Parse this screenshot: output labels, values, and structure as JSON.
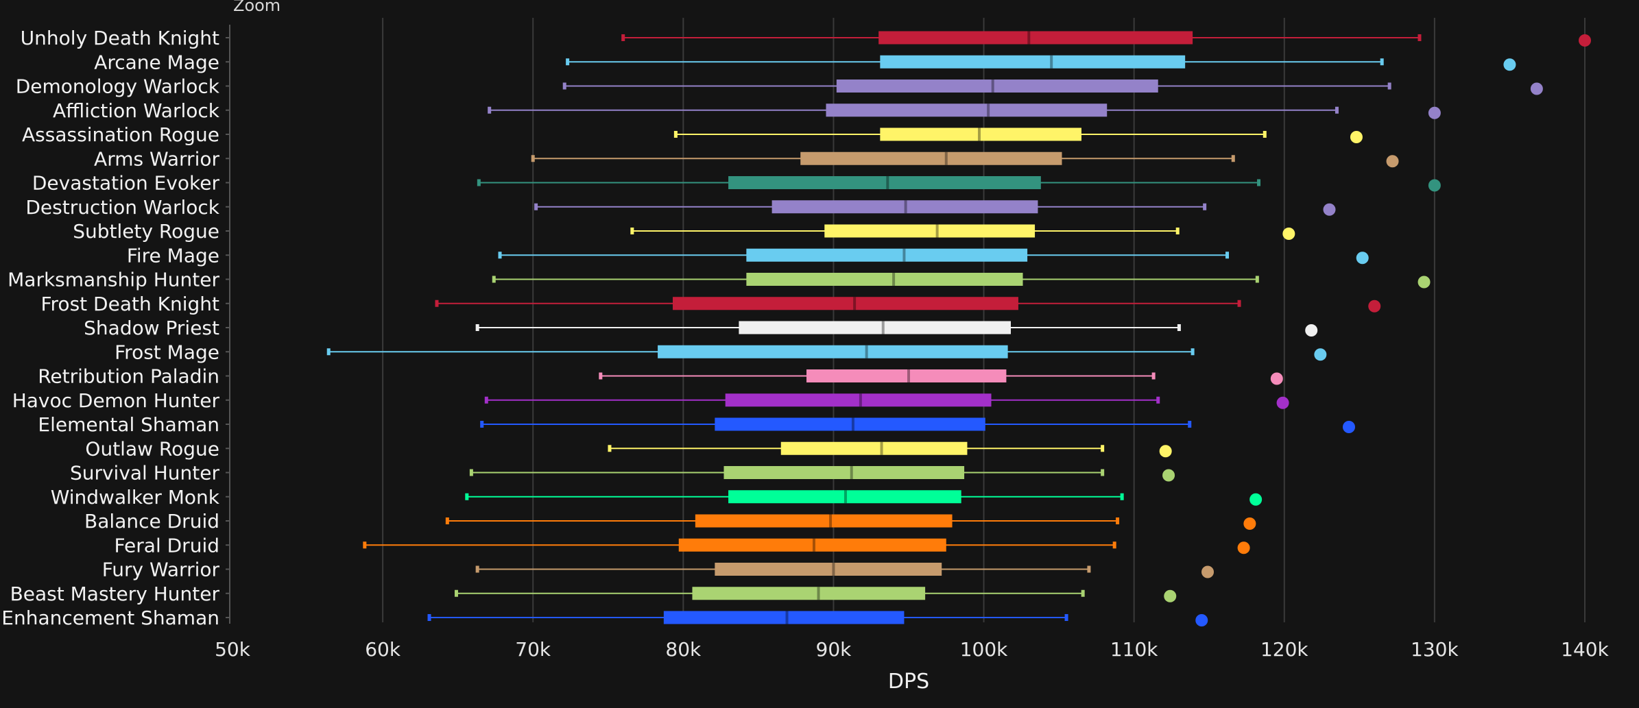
{
  "zoom_label": "Zoom",
  "chart_data": {
    "type": "boxplot",
    "title": "",
    "xlabel": "DPS",
    "ylabel": "",
    "xlim": [
      50000,
      140000
    ],
    "x_ticks": [
      50000,
      60000,
      70000,
      80000,
      90000,
      100000,
      110000,
      120000,
      130000,
      140000
    ],
    "x_tick_labels": [
      "50k",
      "60k",
      "70k",
      "80k",
      "90k",
      "100k",
      "110k",
      "120k",
      "130k",
      "140k"
    ],
    "grid": "vertical",
    "legend": "none",
    "series": [
      {
        "name": "Unholy Death Knight",
        "color": "#c41e3a",
        "min": 76000,
        "q1": 93000,
        "median": 103000,
        "q3": 113900,
        "max": 129000,
        "outlier": 140000
      },
      {
        "name": "Arcane Mage",
        "color": "#69ccf0",
        "min": 72300,
        "q1": 93100,
        "median": 104500,
        "q3": 113400,
        "max": 126500,
        "outlier": 135000
      },
      {
        "name": "Demonology Warlock",
        "color": "#9482c9",
        "min": 72100,
        "q1": 90200,
        "median": 100600,
        "q3": 111600,
        "max": 127000,
        "outlier": 136800
      },
      {
        "name": "Affliction Warlock",
        "color": "#9482c9",
        "min": 67100,
        "q1": 89500,
        "median": 100300,
        "q3": 108200,
        "max": 123500,
        "outlier": 130000
      },
      {
        "name": "Assassination Rogue",
        "color": "#fff468",
        "min": 79500,
        "q1": 93100,
        "median": 99700,
        "q3": 106500,
        "max": 118700,
        "outlier": 124800
      },
      {
        "name": "Arms Warrior",
        "color": "#c69b6d",
        "min": 70000,
        "q1": 87800,
        "median": 97500,
        "q3": 105200,
        "max": 116600,
        "outlier": 127200
      },
      {
        "name": "Devastation Evoker",
        "color": "#33937f",
        "min": 66400,
        "q1": 83000,
        "median": 93600,
        "q3": 103800,
        "max": 118300,
        "outlier": 130000
      },
      {
        "name": "Destruction Warlock",
        "color": "#9482c9",
        "min": 70200,
        "q1": 85900,
        "median": 94800,
        "q3": 103600,
        "max": 114700,
        "outlier": 123000
      },
      {
        "name": "Subtlety Rogue",
        "color": "#fff468",
        "min": 76600,
        "q1": 89400,
        "median": 96900,
        "q3": 103400,
        "max": 112900,
        "outlier": 120300
      },
      {
        "name": "Fire Mage",
        "color": "#69ccf0",
        "min": 67800,
        "q1": 84200,
        "median": 94700,
        "q3": 102900,
        "max": 116200,
        "outlier": 125200
      },
      {
        "name": "Marksmanship Hunter",
        "color": "#aad372",
        "min": 67400,
        "q1": 84200,
        "median": 94000,
        "q3": 102600,
        "max": 118200,
        "outlier": 129300
      },
      {
        "name": "Frost Death Knight",
        "color": "#c41e3a",
        "min": 63600,
        "q1": 79300,
        "median": 91400,
        "q3": 102300,
        "max": 117000,
        "outlier": 126000
      },
      {
        "name": "Shadow Priest",
        "color": "#f0f0f0",
        "min": 66300,
        "q1": 83700,
        "median": 93300,
        "q3": 101800,
        "max": 113000,
        "outlier": 121800
      },
      {
        "name": "Frost Mage",
        "color": "#69ccf0",
        "min": 56400,
        "q1": 78300,
        "median": 92200,
        "q3": 101600,
        "max": 113900,
        "outlier": 122400
      },
      {
        "name": "Retribution Paladin",
        "color": "#f58cba",
        "min": 74500,
        "q1": 88200,
        "median": 95000,
        "q3": 101500,
        "max": 111300,
        "outlier": 119500
      },
      {
        "name": "Havoc Demon Hunter",
        "color": "#a330c9",
        "min": 66900,
        "q1": 82800,
        "median": 91800,
        "q3": 100500,
        "max": 111600,
        "outlier": 119900
      },
      {
        "name": "Elemental Shaman",
        "color": "#2459ff",
        "min": 66600,
        "q1": 82100,
        "median": 91300,
        "q3": 100100,
        "max": 113700,
        "outlier": 124300
      },
      {
        "name": "Outlaw Rogue",
        "color": "#fff468",
        "min": 75100,
        "q1": 86500,
        "median": 93200,
        "q3": 98900,
        "max": 107900,
        "outlier": 112100
      },
      {
        "name": "Survival Hunter",
        "color": "#aad372",
        "min": 65900,
        "q1": 82700,
        "median": 91200,
        "q3": 98700,
        "max": 107900,
        "outlier": 112300
      },
      {
        "name": "Windwalker Monk",
        "color": "#00ff98",
        "min": 65600,
        "q1": 83000,
        "median": 90800,
        "q3": 98500,
        "max": 109200,
        "outlier": 118100
      },
      {
        "name": "Balance Druid",
        "color": "#ff7c0a",
        "min": 64300,
        "q1": 80800,
        "median": 89800,
        "q3": 97900,
        "max": 108900,
        "outlier": 117700
      },
      {
        "name": "Feral Druid",
        "color": "#ff7c0a",
        "min": 58800,
        "q1": 79700,
        "median": 88700,
        "q3": 97500,
        "max": 108700,
        "outlier": 117300
      },
      {
        "name": "Fury Warrior",
        "color": "#c69b6d",
        "min": 66300,
        "q1": 82100,
        "median": 90000,
        "q3": 97200,
        "max": 107000,
        "outlier": 114900
      },
      {
        "name": "Beast Mastery Hunter",
        "color": "#aad372",
        "min": 64900,
        "q1": 80600,
        "median": 89000,
        "q3": 96100,
        "max": 106600,
        "outlier": 112400
      },
      {
        "name": "Enhancement Shaman",
        "color": "#2459ff",
        "min": 63100,
        "q1": 78700,
        "median": 86900,
        "q3": 94700,
        "max": 105500,
        "outlier": 114500
      }
    ]
  }
}
